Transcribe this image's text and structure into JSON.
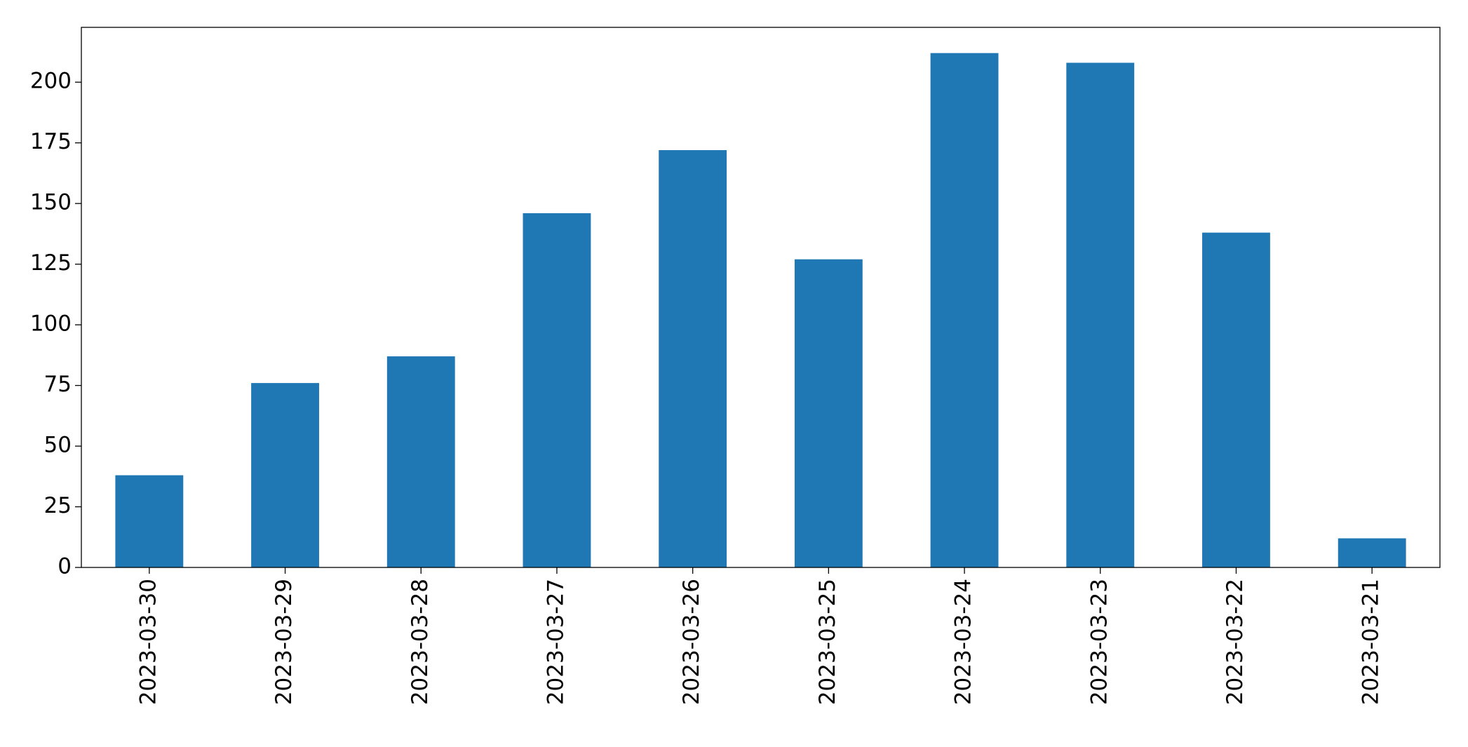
{
  "chart_data": {
    "type": "bar",
    "categories": [
      "2023-03-30",
      "2023-03-29",
      "2023-03-28",
      "2023-03-27",
      "2023-03-26",
      "2023-03-25",
      "2023-03-24",
      "2023-03-23",
      "2023-03-22",
      "2023-03-21"
    ],
    "values": [
      38,
      76,
      87,
      146,
      172,
      127,
      212,
      208,
      138,
      12
    ],
    "color": "#1f77b4",
    "ylim": [
      0,
      222.6
    ],
    "yticks": [
      0,
      25,
      50,
      75,
      100,
      125,
      150,
      175,
      200
    ],
    "grid": false
  }
}
